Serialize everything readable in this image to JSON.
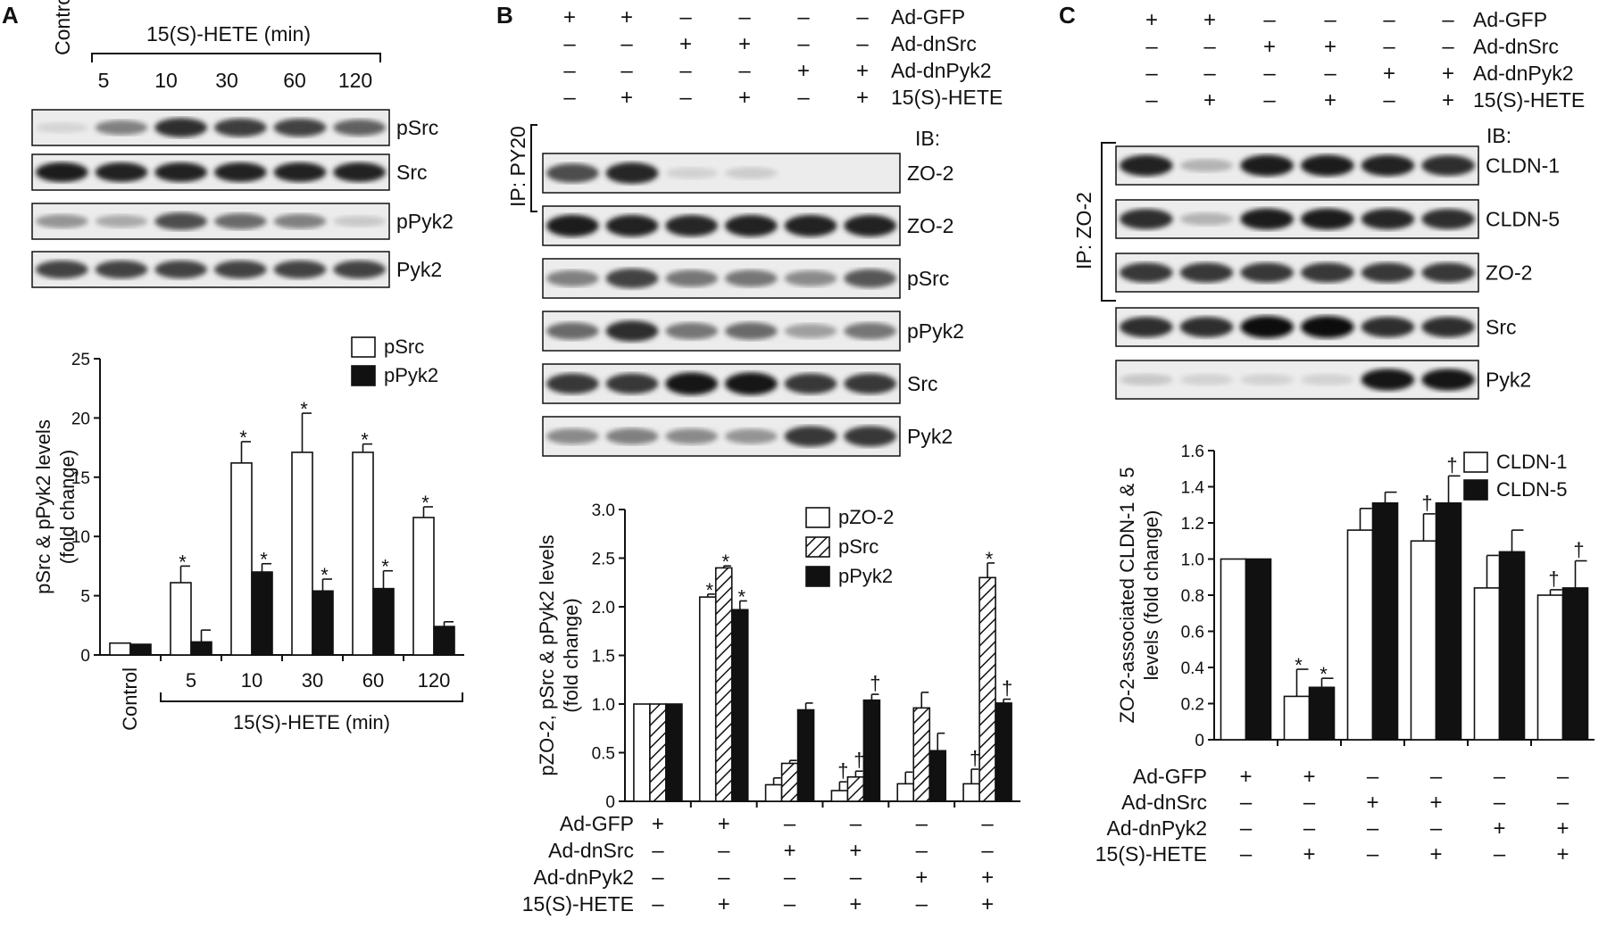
{
  "panels": {
    "A": {
      "label": "A",
      "treatment": {
        "control": "Control",
        "hete": "15(S)-HETE (min)",
        "times": [
          "5",
          "10",
          "30",
          "60",
          "120"
        ]
      },
      "blots": [
        {
          "name": "pSrc",
          "intensity": [
            0.04,
            0.45,
            0.85,
            0.78,
            0.75,
            0.6
          ]
        },
        {
          "name": "Src",
          "intensity": [
            0.92,
            0.9,
            0.9,
            0.9,
            0.9,
            0.9
          ]
        },
        {
          "name": "pPyk2",
          "intensity": [
            0.35,
            0.25,
            0.7,
            0.55,
            0.45,
            0.1
          ]
        },
        {
          "name": "Pyk2",
          "intensity": [
            0.75,
            0.75,
            0.75,
            0.75,
            0.75,
            0.75
          ]
        }
      ]
    },
    "B": {
      "label": "B",
      "ip_label": "IP: PY20",
      "ib_label": "IB:",
      "treat_names": [
        "Ad-GFP",
        "Ad-dnSrc",
        "Ad-dnPyk2",
        "15(S)-HETE"
      ],
      "treat_signs": [
        [
          "+",
          "+",
          "–",
          "–",
          "–",
          "–"
        ],
        [
          "–",
          "–",
          "+",
          "+",
          "–",
          "–"
        ],
        [
          "–",
          "–",
          "–",
          "–",
          "+",
          "+"
        ],
        [
          "–",
          "+",
          "–",
          "+",
          "–",
          "+"
        ]
      ],
      "blots": [
        {
          "name": "ZO-2",
          "intensity": [
            0.7,
            0.88,
            0.05,
            0.08,
            0,
            0
          ]
        },
        {
          "name": "ZO-2",
          "intensity": [
            0.92,
            0.9,
            0.88,
            0.9,
            0.9,
            0.9
          ]
        },
        {
          "name": "pSrc",
          "intensity": [
            0.45,
            0.75,
            0.5,
            0.5,
            0.4,
            0.65
          ]
        },
        {
          "name": "pPyk2",
          "intensity": [
            0.55,
            0.85,
            0.5,
            0.55,
            0.3,
            0.5
          ]
        },
        {
          "name": "Src",
          "intensity": [
            0.8,
            0.8,
            0.98,
            0.98,
            0.8,
            0.8
          ]
        },
        {
          "name": "Pyk2",
          "intensity": [
            0.4,
            0.45,
            0.4,
            0.35,
            0.8,
            0.8
          ]
        }
      ]
    },
    "C": {
      "label": "C",
      "ip_label": "IP: ZO-2",
      "ib_label": "IB:",
      "treat_names": [
        "Ad-GFP",
        "Ad-dnSrc",
        "Ad-dnPyk2",
        "15(S)-HETE"
      ],
      "treat_signs": [
        [
          "+",
          "+",
          "–",
          "–",
          "–",
          "–"
        ],
        [
          "–",
          "–",
          "+",
          "+",
          "–",
          "–"
        ],
        [
          "–",
          "–",
          "–",
          "–",
          "+",
          "+"
        ],
        [
          "–",
          "+",
          "–",
          "+",
          "–",
          "+"
        ]
      ],
      "blots": [
        {
          "name": "CLDN-1",
          "intensity": [
            0.9,
            0.2,
            0.92,
            0.92,
            0.9,
            0.85
          ]
        },
        {
          "name": "CLDN-5",
          "intensity": [
            0.85,
            0.2,
            0.92,
            0.92,
            0.88,
            0.85
          ]
        },
        {
          "name": "ZO-2",
          "intensity": [
            0.8,
            0.8,
            0.8,
            0.8,
            0.8,
            0.8
          ]
        },
        {
          "name": "Src",
          "intensity": [
            0.85,
            0.85,
            1,
            1,
            0.85,
            0.85
          ]
        },
        {
          "name": "Pyk2",
          "intensity": [
            0.1,
            0.05,
            0.05,
            0.05,
            0.95,
            0.95
          ]
        }
      ]
    }
  },
  "chart_data": [
    {
      "panel": "A",
      "type": "bar",
      "categories": [
        "Control",
        "5",
        "10",
        "30",
        "60",
        "120"
      ],
      "group_label": "15(S)-HETE (min)",
      "ylabel": [
        "pSrc & pPyk2 levels",
        "(fold change)"
      ],
      "ylim": [
        0,
        25
      ],
      "yticks": [
        0,
        5,
        10,
        15,
        20,
        25
      ],
      "series": [
        {
          "name": "pSrc",
          "fill": "#ffffff",
          "values": [
            1,
            6.1,
            16.2,
            17.1,
            17.1,
            11.6
          ],
          "err": [
            0,
            1.4,
            1.8,
            3.3,
            0.7,
            0.9
          ],
          "marks": [
            "",
            "*",
            "*",
            "*",
            "*",
            "*"
          ]
        },
        {
          "name": "pPyk2",
          "fill": "#111111",
          "values": [
            0.9,
            1.1,
            7,
            5.4,
            5.6,
            2.4
          ],
          "err": [
            0,
            1,
            0.7,
            1,
            1.5,
            0.4
          ],
          "marks": [
            "",
            "",
            "*",
            "*",
            "*",
            ""
          ]
        }
      ]
    },
    {
      "panel": "B",
      "type": "bar",
      "ylabel": [
        "pZO-2, pSrc & pPyk2 levels",
        "(fold change)"
      ],
      "ylim": [
        0,
        3
      ],
      "yticks": [
        "0",
        "0.5",
        "1.0",
        "1.5",
        "2.0",
        "2.5",
        "3.0"
      ],
      "series": [
        {
          "name": "pZO-2",
          "fill": "#ffffff",
          "values": [
            1,
            2.1,
            0.17,
            0.11,
            0.18,
            0.18
          ],
          "err": [
            0,
            0.03,
            0.07,
            0.09,
            0.12,
            0.15
          ],
          "marks": [
            "",
            "*",
            "",
            "†",
            "",
            "†"
          ]
        },
        {
          "name": "pSrc",
          "fill": "hatch",
          "values": [
            1,
            2.4,
            0.39,
            0.25,
            0.96,
            2.3
          ],
          "err": [
            0,
            0.02,
            0.03,
            0.06,
            0.16,
            0.15
          ],
          "marks": [
            "",
            "*",
            "",
            "†",
            "",
            "*"
          ]
        },
        {
          "name": "pPyk2",
          "fill": "#111111",
          "values": [
            1,
            1.97,
            0.94,
            1.04,
            0.52,
            1.01
          ],
          "err": [
            0,
            0.09,
            0.07,
            0.06,
            0.18,
            0.04
          ],
          "marks": [
            "",
            "*",
            "",
            "†",
            "",
            "†"
          ]
        }
      ]
    },
    {
      "panel": "C",
      "type": "bar",
      "ylabel": [
        "ZO-2-associated CLDN-1 & 5",
        "levels (fold change)"
      ],
      "ylim": [
        0,
        1.6
      ],
      "yticks": [
        "0",
        "0.2",
        "0.4",
        "0.6",
        "0.8",
        "1.0",
        "1.2",
        "1.4",
        "1.6"
      ],
      "series": [
        {
          "name": "CLDN-1",
          "fill": "#ffffff",
          "values": [
            1,
            0.24,
            1.16,
            1.1,
            0.84,
            0.8
          ],
          "err": [
            0,
            0.15,
            0.12,
            0.15,
            0.18,
            0.03
          ],
          "marks": [
            "",
            "*",
            "",
            "†",
            "",
            "†"
          ]
        },
        {
          "name": "CLDN-5",
          "fill": "#111111",
          "values": [
            1,
            0.29,
            1.31,
            1.31,
            1.04,
            0.84
          ],
          "err": [
            0,
            0.05,
            0.06,
            0.15,
            0.12,
            0.15
          ],
          "marks": [
            "",
            "*",
            "",
            "†",
            "",
            "†"
          ]
        }
      ]
    }
  ]
}
